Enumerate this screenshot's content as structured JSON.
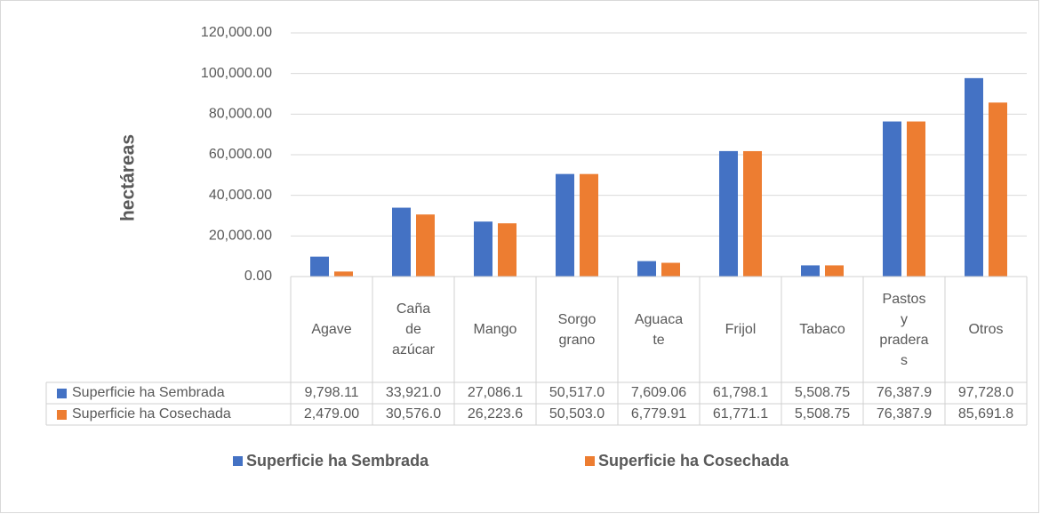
{
  "chart_data": {
    "type": "bar",
    "ylabel": "hectáreas",
    "categories": [
      "Agave",
      "Caña de azúcar",
      "Mango",
      "Sorgo grano",
      "Aguacate",
      "Frijol",
      "Tabaco",
      "Pastos y praderas",
      "Otros"
    ],
    "series": [
      {
        "name": "Superficie ha Sembrada",
        "color": "#4472c4",
        "values": [
          9798.11,
          33921.0,
          27086.1,
          50517.0,
          7609.06,
          61798.1,
          5508.75,
          76387.9,
          97728.0
        ],
        "value_labels": [
          "9,798.11",
          "33,921.0",
          "27,086.1",
          "50,517.0",
          "7,609.06",
          "61,798.1",
          "5,508.75",
          "76,387.9",
          "97,728.0"
        ]
      },
      {
        "name": "Superficie ha Cosechada",
        "color": "#ed7d31",
        "values": [
          2479.0,
          30576.0,
          26223.6,
          50503.0,
          6779.91,
          61771.1,
          5508.75,
          76387.9,
          85691.8
        ],
        "value_labels": [
          "2,479.00",
          "30,576.0",
          "26,223.6",
          "50,503.0",
          "6,779.91",
          "61,771.1",
          "5,508.75",
          "76,387.9",
          "85,691.8"
        ]
      }
    ],
    "ylim": [
      0,
      120000
    ],
    "yticks": [
      {
        "value": 0,
        "label": "0.00"
      },
      {
        "value": 20000,
        "label": "20,000.00"
      },
      {
        "value": 40000,
        "label": "40,000.00"
      },
      {
        "value": 60000,
        "label": "60,000.00"
      },
      {
        "value": 80000,
        "label": "80,000.00"
      },
      {
        "value": 100000,
        "label": "100,000.00"
      },
      {
        "value": 120000,
        "label": "120,000.00"
      }
    ],
    "grid": true
  }
}
